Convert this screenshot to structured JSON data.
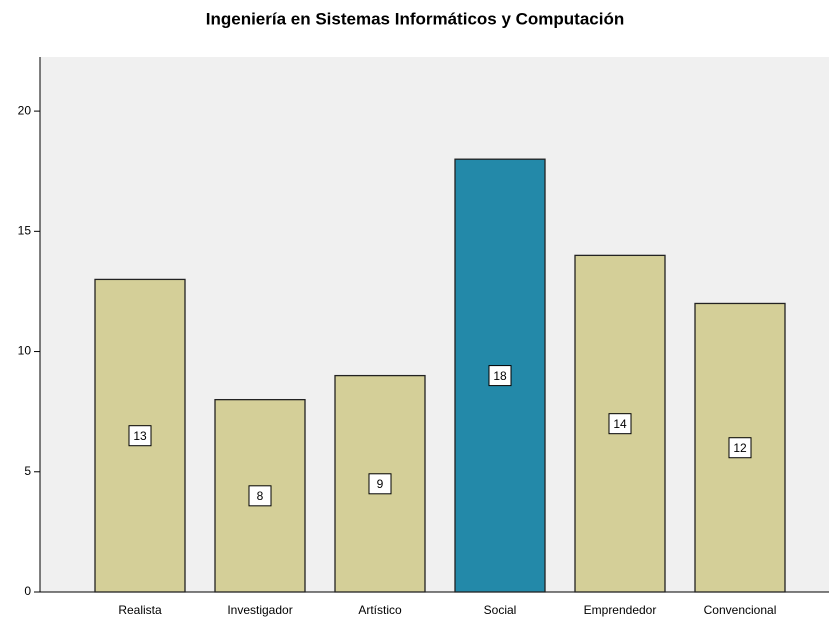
{
  "chart_data": {
    "type": "bar",
    "title": "Ingeniería en Sistemas Informáticos y Computación",
    "categories": [
      "Realista",
      "Investigador",
      "Artístico",
      "Social",
      "Emprendedor",
      "Convencional"
    ],
    "values": [
      13,
      8,
      9,
      18,
      14,
      12
    ],
    "colors": [
      "#d4cf98",
      "#d4cf98",
      "#d4cf98",
      "#2389a9",
      "#d4cf98",
      "#d4cf98"
    ],
    "ylim": [
      0,
      22.25
    ],
    "yticks": [
      0,
      5,
      10,
      15,
      20
    ],
    "grid": false
  }
}
